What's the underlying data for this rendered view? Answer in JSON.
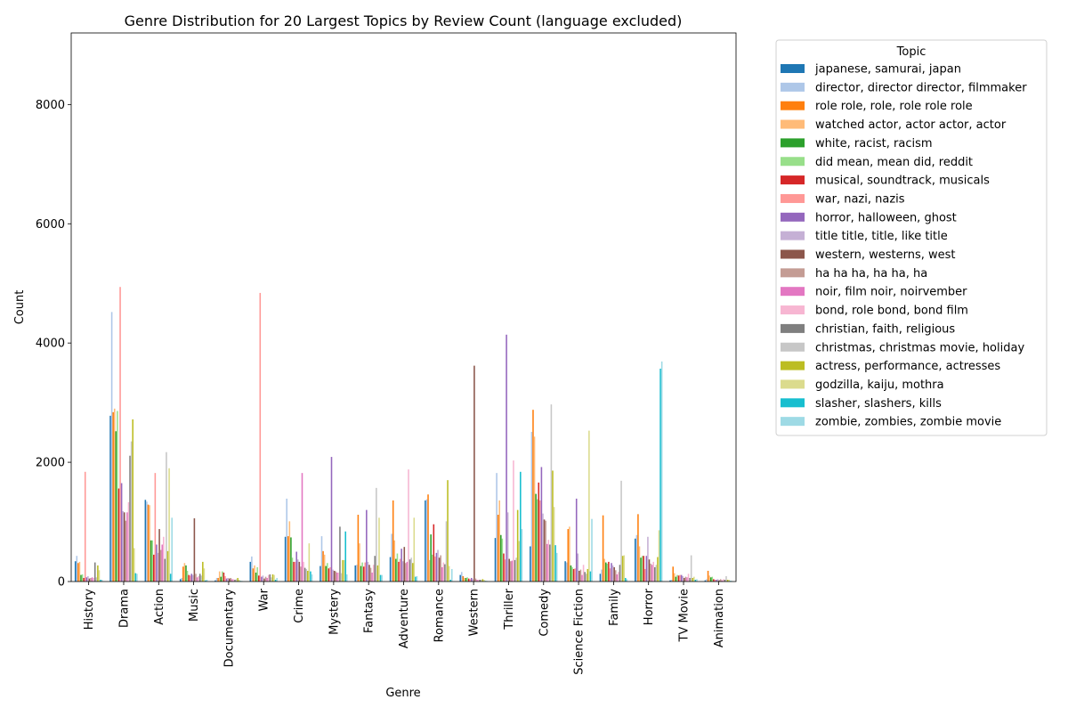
{
  "chart_data": {
    "type": "bar",
    "title": "Genre Distribution for 20 Largest Topics by Review Count (language excluded)",
    "xlabel": "Genre",
    "ylabel": "Count",
    "ylim": [
      0,
      9200
    ],
    "yticks": [
      0,
      2000,
      4000,
      6000,
      8000
    ],
    "legend_title": "Topic",
    "legend_position": "outside-right",
    "grid": false,
    "categories": [
      "History",
      "Drama",
      "Action",
      "Music",
      "Documentary",
      "War",
      "Crime",
      "Mystery",
      "Fantasy",
      "Adventure",
      "Romance",
      "Western",
      "Thriller",
      "Comedy",
      "Science Fiction",
      "Family",
      "Horror",
      "TV Movie",
      "Animation"
    ],
    "series": [
      {
        "name": "japanese, samurai, japan",
        "color": "#1f77b4",
        "values": [
          340,
          2780,
          1370,
          40,
          20,
          330,
          750,
          260,
          270,
          410,
          1360,
          110,
          730,
          590,
          340,
          130,
          720,
          20,
          20
        ]
      },
      {
        "name": "director, director director, filmmaker",
        "color": "#aec7e8",
        "values": [
          430,
          4520,
          1340,
          60,
          60,
          420,
          1390,
          760,
          280,
          800,
          1380,
          160,
          1820,
          2510,
          320,
          200,
          780,
          30,
          40
        ]
      },
      {
        "name": "role role, role, role role role",
        "color": "#ff7f0e",
        "values": [
          310,
          2840,
          1290,
          250,
          60,
          220,
          760,
          510,
          1120,
          1360,
          1460,
          90,
          1120,
          2880,
          880,
          1110,
          1130,
          250,
          180
        ]
      },
      {
        "name": "watched actor, actor actor, actor",
        "color": "#ffbb78",
        "values": [
          330,
          2900,
          1280,
          310,
          170,
          270,
          1010,
          450,
          640,
          690,
          360,
          60,
          1360,
          2430,
          920,
          380,
          590,
          140,
          100
        ]
      },
      {
        "name": "white, racist, racism",
        "color": "#2ca02c",
        "values": [
          110,
          2520,
          690,
          270,
          80,
          150,
          740,
          260,
          260,
          380,
          790,
          60,
          780,
          1470,
          270,
          320,
          400,
          80,
          70
        ]
      },
      {
        "name": "did mean, mean did, reddit",
        "color": "#98df8a",
        "values": [
          120,
          2860,
          690,
          180,
          170,
          240,
          400,
          310,
          320,
          470,
          450,
          70,
          720,
          1380,
          240,
          300,
          430,
          110,
          80
        ]
      },
      {
        "name": "musical, soundtrack, musicals",
        "color": "#d62728",
        "values": [
          60,
          1560,
          450,
          110,
          150,
          100,
          330,
          220,
          250,
          330,
          960,
          50,
          470,
          1660,
          210,
          330,
          430,
          100,
          40
        ]
      },
      {
        "name": "war, nazi, nazis",
        "color": "#ff9896",
        "values": [
          1840,
          4940,
          1820,
          100,
          90,
          4840,
          330,
          240,
          320,
          380,
          420,
          40,
          370,
          1360,
          220,
          220,
          210,
          110,
          30
        ]
      },
      {
        "name": "horror, halloween, ghost",
        "color": "#9467bd",
        "values": [
          70,
          1650,
          620,
          130,
          50,
          80,
          500,
          2090,
          1200,
          550,
          480,
          60,
          4140,
          1920,
          1390,
          310,
          430,
          110,
          30
        ]
      },
      {
        "name": "title title, title, like title",
        "color": "#c5b0d5",
        "values": [
          90,
          1180,
          480,
          110,
          60,
          100,
          370,
          200,
          330,
          340,
          530,
          40,
          1160,
          1140,
          470,
          270,
          750,
          90,
          40
        ]
      },
      {
        "name": "western, westerns, west",
        "color": "#8c564b",
        "values": [
          50,
          1160,
          880,
          1060,
          50,
          50,
          330,
          180,
          280,
          580,
          400,
          3620,
          380,
          1040,
          180,
          240,
          370,
          60,
          20
        ]
      },
      {
        "name": "ha ha ha, ha ha, ha",
        "color": "#c49c94",
        "values": [
          60,
          1020,
          530,
          130,
          60,
          80,
          250,
          170,
          230,
          310,
          440,
          50,
          340,
          1020,
          200,
          190,
          300,
          80,
          40
        ]
      },
      {
        "name": "noir, film noir, noirvember",
        "color": "#e377c2",
        "values": [
          70,
          1160,
          620,
          70,
          40,
          60,
          1820,
          150,
          150,
          330,
          240,
          30,
          350,
          630,
          110,
          120,
          280,
          70,
          20
        ]
      },
      {
        "name": "bond, role bond, bond film",
        "color": "#f7b6d2",
        "values": [
          60,
          1330,
          750,
          90,
          40,
          110,
          330,
          150,
          280,
          1880,
          320,
          30,
          2030,
          700,
          280,
          160,
          330,
          130,
          40
        ]
      },
      {
        "name": "christian, faith, religious",
        "color": "#7f7f7f",
        "values": [
          320,
          2110,
          380,
          130,
          30,
          120,
          230,
          920,
          430,
          370,
          290,
          30,
          360,
          620,
          160,
          280,
          240,
          60,
          30
        ]
      },
      {
        "name": "christmas, christmas movie, holiday",
        "color": "#c7c7c7",
        "values": [
          70,
          2350,
          2170,
          100,
          40,
          70,
          210,
          140,
          1570,
          400,
          1010,
          30,
          400,
          2970,
          130,
          1690,
          280,
          440,
          90
        ]
      },
      {
        "name": "actress, performance, actresses",
        "color": "#bcbd22",
        "values": [
          270,
          2720,
          510,
          330,
          60,
          120,
          180,
          360,
          270,
          310,
          1700,
          40,
          1200,
          1860,
          210,
          430,
          410,
          60,
          30
        ]
      },
      {
        "name": "godzilla, kaiju, mothra",
        "color": "#dbdb8d",
        "values": [
          190,
          560,
          1900,
          220,
          30,
          110,
          640,
          360,
          1070,
          1070,
          260,
          30,
          680,
          1250,
          2530,
          440,
          860,
          80,
          30
        ]
      },
      {
        "name": "slasher, slashers, kills",
        "color": "#17becf",
        "values": [
          30,
          140,
          130,
          20,
          10,
          30,
          170,
          840,
          110,
          80,
          30,
          10,
          1840,
          610,
          170,
          60,
          3570,
          30,
          10
        ]
      },
      {
        "name": "zombie, zombies, zombie movie",
        "color": "#9edae5",
        "values": [
          30,
          130,
          1070,
          30,
          10,
          60,
          120,
          120,
          110,
          90,
          210,
          10,
          880,
          480,
          1050,
          40,
          3690,
          40,
          10
        ]
      }
    ]
  }
}
